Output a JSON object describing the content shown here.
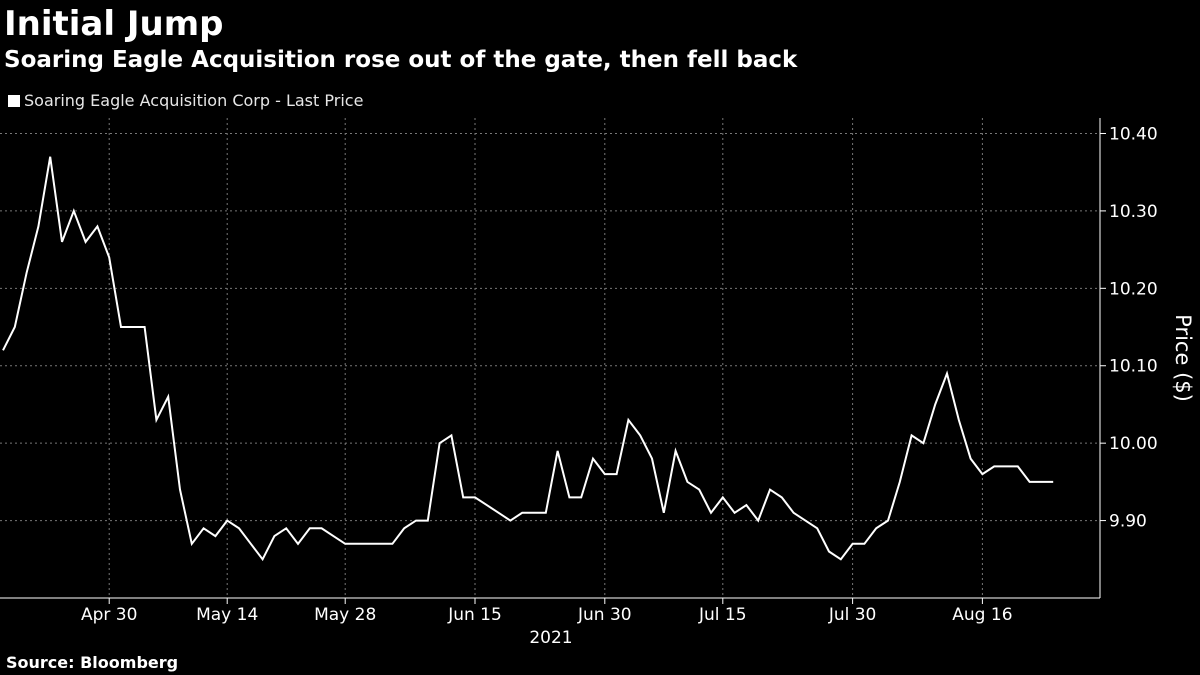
{
  "header": {
    "title": "Initial Jump",
    "subtitle": "Soaring Eagle Acquisition rose out of the gate, then fell back"
  },
  "footer": {
    "source": "Source: Bloomberg"
  },
  "colors": {
    "background": "#000000",
    "line": "#ffffff",
    "grid": "#777777",
    "text": "#ffffff"
  },
  "chart_data": {
    "type": "line",
    "title": "Initial Jump",
    "subtitle": "Soaring Eagle Acquisition rose out of the gate, then fell back",
    "xlabel": "2021",
    "ylabel": "Price ($)",
    "ylim": [
      9.8,
      10.42
    ],
    "y_ticks": [
      9.9,
      10.0,
      10.1,
      10.2,
      10.3,
      10.4
    ],
    "y_tick_labels": [
      "9.90",
      "10.00",
      "10.10",
      "10.20",
      "10.30",
      "10.40"
    ],
    "x_ticks": [
      {
        "label": "Apr 30",
        "index": 9
      },
      {
        "label": "May 14",
        "index": 19
      },
      {
        "label": "May 28",
        "index": 29
      },
      {
        "label": "Jun 15",
        "index": 40
      },
      {
        "label": "Jun 30",
        "index": 51
      },
      {
        "label": "Jul 15",
        "index": 61
      },
      {
        "label": "Jul 30",
        "index": 72
      },
      {
        "label": "Aug 16",
        "index": 83
      }
    ],
    "x_year_label": "2021",
    "grid": true,
    "legend": [
      "Soaring Eagle Acquisition Corp - Last Price"
    ],
    "legend_position": "top-left",
    "series": [
      {
        "name": "Soaring Eagle Acquisition Corp - Last Price",
        "values": [
          10.12,
          10.15,
          10.22,
          10.28,
          10.37,
          10.26,
          10.3,
          10.26,
          10.28,
          10.24,
          10.15,
          10.15,
          10.15,
          10.03,
          10.06,
          9.94,
          9.87,
          9.89,
          9.88,
          9.9,
          9.89,
          9.87,
          9.85,
          9.88,
          9.89,
          9.87,
          9.89,
          9.89,
          9.88,
          9.87,
          9.87,
          9.87,
          9.87,
          9.87,
          9.89,
          9.9,
          9.9,
          10.0,
          10.01,
          9.93,
          9.93,
          9.92,
          9.91,
          9.9,
          9.91,
          9.91,
          9.91,
          9.99,
          9.93,
          9.93,
          9.98,
          9.96,
          9.96,
          10.03,
          10.01,
          9.98,
          9.91,
          9.99,
          9.95,
          9.94,
          9.91,
          9.93,
          9.91,
          9.92,
          9.9,
          9.94,
          9.93,
          9.91,
          9.9,
          9.89,
          9.86,
          9.85,
          9.87,
          9.87,
          9.89,
          9.9,
          9.95,
          10.01,
          10.0,
          10.05,
          10.09,
          10.03,
          9.98,
          9.96,
          9.97,
          9.97,
          9.97,
          9.95,
          9.95,
          9.95
        ]
      }
    ]
  }
}
